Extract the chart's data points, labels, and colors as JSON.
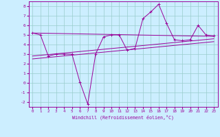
{
  "background_color": "#cceeff",
  "grid_color": "#99cccc",
  "line_color": "#990099",
  "xlabel": "Windchill (Refroidissement éolien,°C)",
  "ylim": [
    -2.5,
    8.5
  ],
  "xlim": [
    -0.5,
    23.5
  ],
  "yticks": [
    -2,
    -1,
    0,
    1,
    2,
    3,
    4,
    5,
    6,
    7,
    8
  ],
  "xticks": [
    0,
    1,
    2,
    3,
    4,
    5,
    6,
    7,
    8,
    9,
    10,
    11,
    12,
    13,
    14,
    15,
    16,
    17,
    18,
    19,
    20,
    21,
    22,
    23
  ],
  "series1_x": [
    0,
    1,
    2,
    3,
    4,
    5,
    6,
    7,
    8,
    9,
    10,
    11,
    12,
    13,
    14,
    15,
    16,
    17,
    18,
    19,
    20,
    21,
    22,
    23
  ],
  "series1_y": [
    5.2,
    5.0,
    2.8,
    3.0,
    3.0,
    3.0,
    0.1,
    -2.2,
    3.0,
    4.8,
    5.0,
    5.0,
    3.4,
    3.6,
    6.7,
    7.4,
    8.2,
    6.2,
    4.5,
    4.4,
    4.5,
    6.0,
    5.0,
    4.9
  ],
  "series2_x": [
    0,
    23
  ],
  "series2_y": [
    5.2,
    4.85
  ],
  "series3_x": [
    0,
    23
  ],
  "series3_y": [
    2.8,
    4.6
  ],
  "series4_x": [
    0,
    23
  ],
  "series4_y": [
    2.5,
    4.3
  ]
}
